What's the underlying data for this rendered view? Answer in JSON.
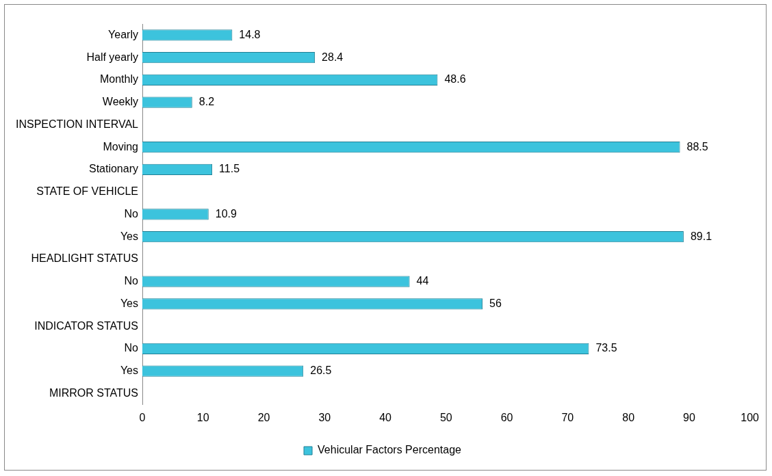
{
  "chart_data": {
    "type": "bar",
    "orientation": "horizontal",
    "categories": [
      "Yearly",
      "Half yearly",
      "Monthly",
      "Weekly",
      "INSPECTION INTERVAL",
      "Moving",
      "Stationary",
      "STATE OF VEHICLE",
      "No",
      "Yes",
      "HEADLIGHT STATUS",
      "No",
      "Yes",
      "INDICATOR STATUS",
      "No",
      "Yes",
      "MIRROR STATUS"
    ],
    "series": [
      {
        "name": "Vehicular Factors Percentage",
        "color": "#3cc3dd",
        "values": [
          14.8,
          28.4,
          48.6,
          8.2,
          null,
          88.5,
          11.5,
          null,
          10.9,
          89.1,
          null,
          44,
          56,
          null,
          73.5,
          26.5,
          null
        ]
      }
    ],
    "xlim": [
      0,
      100
    ],
    "xticks": [
      0,
      10,
      20,
      30,
      40,
      50,
      60,
      70,
      80,
      90,
      100
    ],
    "grid": false,
    "legend": "bottom",
    "data_labels": true
  }
}
